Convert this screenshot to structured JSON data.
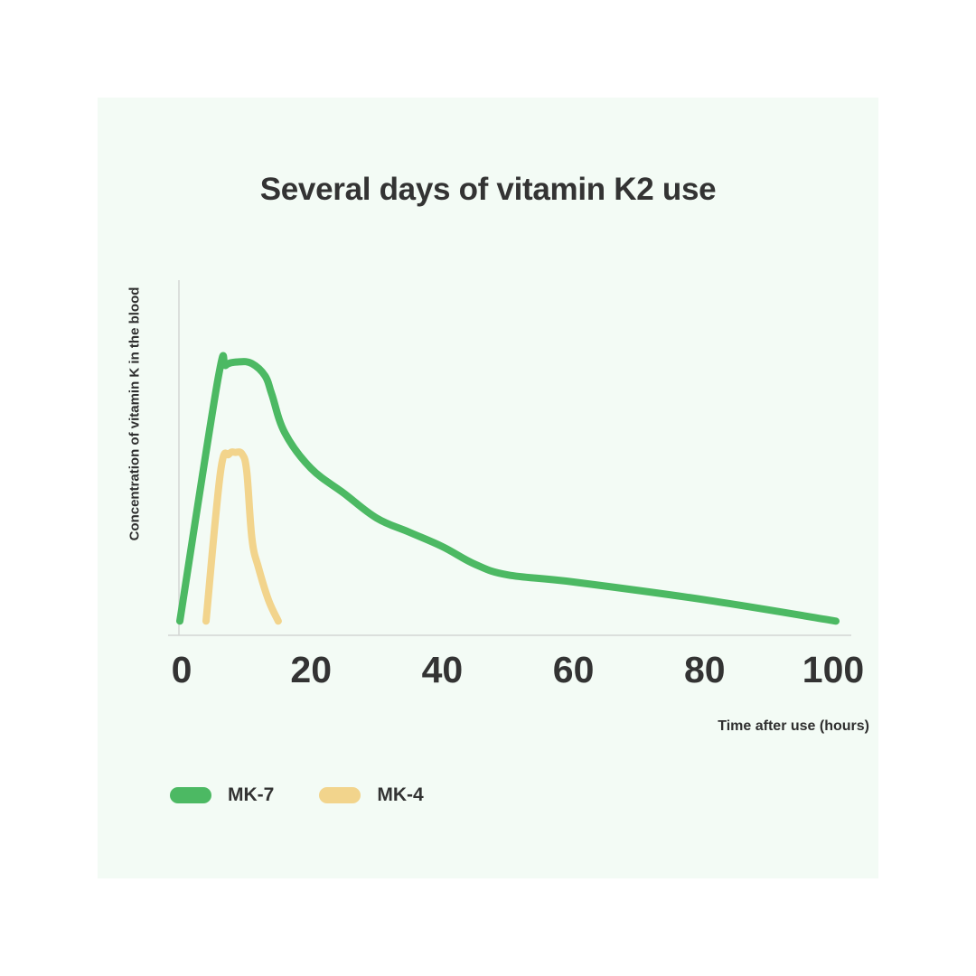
{
  "chart_data": {
    "type": "line",
    "title": "Several days of vitamin K2 use",
    "xlabel": "Time after use (hours)",
    "ylabel": "Concentration of vitamin K in the blood",
    "xlim": [
      0,
      100
    ],
    "ylim": [
      0,
      100
    ],
    "x_ticks": [
      "0",
      "20",
      "40",
      "60",
      "80",
      "100"
    ],
    "y_ticks": [],
    "grid": false,
    "legend_position": "bottom-left",
    "series": [
      {
        "name": "MK-7",
        "color": "#4cb963",
        "points": [
          [
            0,
            4
          ],
          [
            5.8,
            72
          ],
          [
            7,
            76
          ],
          [
            9,
            77
          ],
          [
            11,
            76.5
          ],
          [
            13,
            73
          ],
          [
            14,
            68
          ],
          [
            16,
            57
          ],
          [
            20,
            47
          ],
          [
            25,
            40
          ],
          [
            30,
            33
          ],
          [
            35,
            29
          ],
          [
            40,
            25
          ],
          [
            45,
            20
          ],
          [
            50,
            17
          ],
          [
            60,
            15
          ],
          [
            80,
            10
          ],
          [
            100,
            4
          ]
        ]
      },
      {
        "name": "MK-4",
        "color": "#f2d48c",
        "points": [
          [
            4,
            4
          ],
          [
            6.2,
            46
          ],
          [
            7.5,
            51
          ],
          [
            8.5,
            51.5
          ],
          [
            9.5,
            51
          ],
          [
            10.2,
            46
          ],
          [
            11,
            27
          ],
          [
            12,
            19
          ],
          [
            13.5,
            10
          ],
          [
            15,
            4
          ]
        ]
      }
    ]
  }
}
